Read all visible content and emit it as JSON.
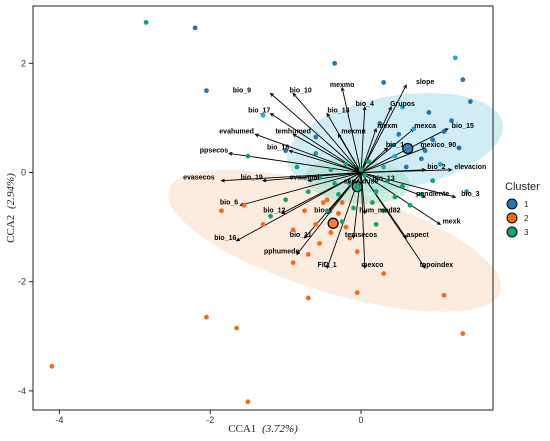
{
  "chart_data": {
    "type": "scatter",
    "subtype": "CCA ordination biplot with cluster ellipses",
    "xlabel": "CCA1 (3.72%)",
    "ylabel": "CCA2 (2.94%)",
    "xlabel_main": "CCA1",
    "xlabel_pct": "(3.72%)",
    "ylabel_main": "CCA2",
    "ylabel_pct": "(2.94%)",
    "xlim": [
      -4.35,
      1.75
    ],
    "ylim": [
      -4.35,
      3.05
    ],
    "x_ticks": [
      -4,
      -2,
      0
    ],
    "y_ticks": [
      -4,
      -2,
      0,
      2
    ],
    "grid": false,
    "legend": {
      "title": "Cluster",
      "placement": "right",
      "entries": [
        {
          "label": "1",
          "color": "#1f78b4"
        },
        {
          "label": "2",
          "color": "#f26b1d"
        },
        {
          "label": "3",
          "color": "#1aa170"
        }
      ]
    },
    "colors": {
      "cluster1": "#1f78b4",
      "cluster1_alt": "#2aa7c9",
      "cluster2": "#f26b1d",
      "cluster3": "#1aa170",
      "ellipse1": "#a9dcec",
      "ellipse2": "#f9dcc6",
      "ellipse3": "#a8e0c8"
    },
    "ellipses": [
      {
        "cluster": "1",
        "cx": 0.45,
        "cy": 0.55,
        "rx": 1.45,
        "ry": 0.85,
        "angle": -10
      },
      {
        "cluster": "2",
        "cx": -0.35,
        "cy": -1.25,
        "rx": 2.3,
        "ry": 0.95,
        "angle": 17
      },
      {
        "cluster": "3",
        "cx": -0.05,
        "cy": -0.15,
        "rx": 0.7,
        "ry": 0.42,
        "angle": 5
      }
    ],
    "centroids": [
      {
        "cluster": "1",
        "x": 0.62,
        "y": 0.44
      },
      {
        "cluster": "2",
        "x": -0.37,
        "y": -0.93
      },
      {
        "cluster": "3",
        "x": -0.05,
        "y": -0.26
      }
    ],
    "points": [
      {
        "x": -2.85,
        "y": 2.75,
        "c": "3"
      },
      {
        "x": -2.2,
        "y": 2.65,
        "c": "1"
      },
      {
        "x": -0.35,
        "y": 2.0,
        "c": "1"
      },
      {
        "x": 1.25,
        "y": 2.1,
        "c": "1"
      },
      {
        "x": 1.35,
        "y": 1.7,
        "c": "1"
      },
      {
        "x": 0.3,
        "y": 1.65,
        "c": "1"
      },
      {
        "x": 0.55,
        "y": 1.2,
        "c": "1"
      },
      {
        "x": 0.9,
        "y": 1.1,
        "c": "1"
      },
      {
        "x": 1.2,
        "y": 0.95,
        "c": "1"
      },
      {
        "x": 0.7,
        "y": 0.8,
        "c": "1"
      },
      {
        "x": 0.95,
        "y": 0.6,
        "c": "1"
      },
      {
        "x": 1.3,
        "y": 0.45,
        "c": "1"
      },
      {
        "x": 0.45,
        "y": 0.3,
        "c": "1"
      },
      {
        "x": 0.8,
        "y": 0.25,
        "c": "1"
      },
      {
        "x": 0.6,
        "y": 0.1,
        "c": "1"
      },
      {
        "x": 1.05,
        "y": 0.15,
        "c": "1"
      },
      {
        "x": 0.25,
        "y": 0.9,
        "c": "1"
      },
      {
        "x": 1.45,
        "y": 1.3,
        "c": "1"
      },
      {
        "x": 0.4,
        "y": 0.5,
        "c": "1"
      },
      {
        "x": 0.85,
        "y": 0.4,
        "c": "1"
      },
      {
        "x": 0.5,
        "y": 0.7,
        "c": "1"
      },
      {
        "x": 0.3,
        "y": 0.1,
        "c": "1"
      },
      {
        "x": 1.1,
        "y": 0.75,
        "c": "1"
      },
      {
        "x": -0.6,
        "y": 0.65,
        "c": "1"
      },
      {
        "x": -1.3,
        "y": 1.05,
        "c": "1"
      },
      {
        "x": -2.05,
        "y": 1.5,
        "c": "1"
      },
      {
        "x": -1.0,
        "y": 0.4,
        "c": "1"
      },
      {
        "x": 1.4,
        "y": -0.35,
        "c": "1"
      },
      {
        "x": -0.2,
        "y": 0.15,
        "c": "3"
      },
      {
        "x": -0.4,
        "y": 0.05,
        "c": "3"
      },
      {
        "x": 0.05,
        "y": -0.05,
        "c": "3"
      },
      {
        "x": -0.15,
        "y": -0.2,
        "c": "3"
      },
      {
        "x": 0.2,
        "y": -0.35,
        "c": "3"
      },
      {
        "x": -0.3,
        "y": -0.4,
        "c": "3"
      },
      {
        "x": 0.35,
        "y": -0.15,
        "c": "3"
      },
      {
        "x": -0.55,
        "y": -0.1,
        "c": "3"
      },
      {
        "x": 0.15,
        "y": -0.55,
        "c": "3"
      },
      {
        "x": -0.1,
        "y": -0.65,
        "c": "3"
      },
      {
        "x": 0.45,
        "y": -0.45,
        "c": "3"
      },
      {
        "x": -0.7,
        "y": -0.35,
        "c": "3"
      },
      {
        "x": 0.55,
        "y": -0.25,
        "c": "3"
      },
      {
        "x": -0.45,
        "y": -0.7,
        "c": "3"
      },
      {
        "x": 0.1,
        "y": 0.2,
        "c": "3"
      },
      {
        "x": -0.85,
        "y": 0.1,
        "c": "3"
      },
      {
        "x": 0.3,
        "y": -0.7,
        "c": "3"
      },
      {
        "x": -0.25,
        "y": -0.9,
        "c": "3"
      },
      {
        "x": 0.65,
        "y": -0.6,
        "c": "3"
      },
      {
        "x": -1.0,
        "y": -0.5,
        "c": "3"
      },
      {
        "x": 0.8,
        "y": -0.4,
        "c": "3"
      },
      {
        "x": -1.5,
        "y": 0.3,
        "c": "3"
      },
      {
        "x": -1.2,
        "y": -0.8,
        "c": "3"
      },
      {
        "x": 0.2,
        "y": -0.95,
        "c": "3"
      },
      {
        "x": 0.95,
        "y": -0.15,
        "c": "3"
      },
      {
        "x": -0.6,
        "y": 0.35,
        "c": "3"
      },
      {
        "x": 0.0,
        "y": 0.05,
        "c": "3"
      },
      {
        "x": -0.35,
        "y": -0.2,
        "c": "3"
      },
      {
        "x": -0.5,
        "y": -0.55,
        "c": "2"
      },
      {
        "x": -0.3,
        "y": -0.75,
        "c": "2"
      },
      {
        "x": -0.6,
        "y": -0.95,
        "c": "2"
      },
      {
        "x": -0.4,
        "y": -1.1,
        "c": "2"
      },
      {
        "x": -0.2,
        "y": -1.0,
        "c": "2"
      },
      {
        "x": -0.75,
        "y": -0.7,
        "c": "2"
      },
      {
        "x": -0.15,
        "y": -1.2,
        "c": "2"
      },
      {
        "x": -0.55,
        "y": -1.3,
        "c": "2"
      },
      {
        "x": -0.9,
        "y": -1.05,
        "c": "2"
      },
      {
        "x": -1.3,
        "y": -0.95,
        "c": "2"
      },
      {
        "x": -0.05,
        "y": -1.45,
        "c": "2"
      },
      {
        "x": -0.7,
        "y": -1.5,
        "c": "2"
      },
      {
        "x": -1.55,
        "y": -0.6,
        "c": "2"
      },
      {
        "x": -1.85,
        "y": -0.7,
        "c": "2"
      },
      {
        "x": -0.9,
        "y": -1.65,
        "c": "2"
      },
      {
        "x": -0.7,
        "y": -2.3,
        "c": "2"
      },
      {
        "x": -0.05,
        "y": -2.2,
        "c": "2"
      },
      {
        "x": 0.3,
        "y": -1.85,
        "c": "2"
      },
      {
        "x": -2.05,
        "y": -2.65,
        "c": "2"
      },
      {
        "x": -1.65,
        "y": -2.85,
        "c": "2"
      },
      {
        "x": -4.1,
        "y": -3.55,
        "c": "2"
      },
      {
        "x": -1.5,
        "y": -4.2,
        "c": "2"
      },
      {
        "x": 1.35,
        "y": -2.95,
        "c": "2"
      },
      {
        "x": 1.1,
        "y": -2.25,
        "c": "2"
      },
      {
        "x": -0.45,
        "y": -0.5,
        "c": "2"
      },
      {
        "x": -0.25,
        "y": -0.55,
        "c": "2"
      }
    ],
    "arrows": [
      {
        "label": "bio_9",
        "x": -1.2,
        "y": 1.45,
        "lx": -1.58,
        "ly": 1.45
      },
      {
        "label": "bio_10",
        "x": -0.9,
        "y": 1.45,
        "lx": -0.8,
        "ly": 1.45
      },
      {
        "label": "mexmo",
        "x": -0.25,
        "y": 1.55,
        "lx": -0.25,
        "ly": 1.55
      },
      {
        "label": "slope",
        "x": 0.6,
        "y": 1.6,
        "lx": 0.85,
        "ly": 1.6
      },
      {
        "label": "bio_17",
        "x": -1.2,
        "y": 1.08,
        "lx": -1.35,
        "ly": 1.08
      },
      {
        "label": "bio_14",
        "x": -0.45,
        "y": 1.08,
        "lx": -0.3,
        "ly": 1.08
      },
      {
        "label": "bio_4",
        "x": 0.05,
        "y": 1.2,
        "lx": 0.05,
        "ly": 1.2
      },
      {
        "label": "Grupos",
        "x": 0.4,
        "y": 1.2,
        "lx": 0.55,
        "ly": 1.2
      },
      {
        "label": "mexm",
        "x": 0.2,
        "y": 0.8,
        "lx": 0.35,
        "ly": 0.8
      },
      {
        "label": "mexca",
        "x": 0.7,
        "y": 0.8,
        "lx": 0.85,
        "ly": 0.8
      },
      {
        "label": "bio_15",
        "x": 1.15,
        "y": 0.8,
        "lx": 1.35,
        "ly": 0.8
      },
      {
        "label": "evahumed",
        "x": -1.4,
        "y": 0.7,
        "lx": -1.65,
        "ly": 0.7
      },
      {
        "label": "temhumed",
        "x": -0.9,
        "y": 0.7,
        "lx": -0.9,
        "ly": 0.7
      },
      {
        "label": "mexmn",
        "x": -0.3,
        "y": 0.7,
        "lx": -0.1,
        "ly": 0.7
      },
      {
        "label": "bio_18",
        "x": -0.95,
        "y": 0.4,
        "lx": -1.1,
        "ly": 0.4
      },
      {
        "label": "bio_1",
        "x": 0.35,
        "y": 0.45,
        "lx": 0.45,
        "ly": 0.45
      },
      {
        "label": "mexico_90_",
        "x": 0.85,
        "y": 0.45,
        "lx": 1.05,
        "ly": 0.45
      },
      {
        "label": "ppsecos",
        "x": -1.75,
        "y": 0.35,
        "lx": -1.95,
        "ly": 0.35
      },
      {
        "label": "elevacion",
        "x": 1.2,
        "y": 0.05,
        "lx": 1.45,
        "ly": 0.05
      },
      {
        "label": "bio_2",
        "x": 0.85,
        "y": 0.05,
        "lx": 1.0,
        "ly": 0.05
      },
      {
        "label": "bio_19",
        "x": -1.3,
        "y": -0.15,
        "lx": -1.45,
        "ly": -0.15
      },
      {
        "label": "evasecos",
        "x": -1.85,
        "y": -0.15,
        "lx": -2.15,
        "ly": -0.15
      },
      {
        "label": "evaanual",
        "x": -0.7,
        "y": -0.15,
        "lx": -0.75,
        "ly": -0.15
      },
      {
        "label": "pendiente",
        "x": 0.85,
        "y": -0.45,
        "lx": 0.95,
        "ly": -0.45
      },
      {
        "label": "bio_3",
        "x": 1.25,
        "y": -0.45,
        "lx": 1.45,
        "ly": -0.45
      },
      {
        "label": "bio_6",
        "x": -1.6,
        "y": -0.6,
        "lx": -1.75,
        "ly": -0.6
      },
      {
        "label": "bio_12",
        "x": -1.05,
        "y": -0.75,
        "lx": -1.15,
        "ly": -0.75
      },
      {
        "label": "bio_1",
        "x": -0.45,
        "y": -0.75,
        "lx": -0.5,
        "ly": -0.75
      },
      {
        "label": "hum_mod82",
        "x": 0.05,
        "y": -0.75,
        "lx": 0.25,
        "ly": -0.75
      },
      {
        "label": "mexk",
        "x": 1.05,
        "y": -0.95,
        "lx": 1.2,
        "ly": -0.95
      },
      {
        "label": "bio_16",
        "x": -1.65,
        "y": -1.25,
        "lx": -1.8,
        "ly": -1.25
      },
      {
        "label": "bio_11",
        "x": -0.75,
        "y": -1.2,
        "lx": -0.8,
        "ly": -1.2
      },
      {
        "label": "temsecos",
        "x": -0.1,
        "y": -1.2,
        "lx": 0.0,
        "ly": -1.2
      },
      {
        "label": "aspect",
        "x": 0.6,
        "y": -1.2,
        "lx": 0.75,
        "ly": -1.2
      },
      {
        "label": "pphumedo",
        "x": -0.85,
        "y": -1.5,
        "lx": -1.05,
        "ly": -1.5
      },
      {
        "label": "FID_1",
        "x": -0.45,
        "y": -1.75,
        "lx": -0.45,
        "ly": -1.75
      },
      {
        "label": "mexco",
        "x": 0.05,
        "y": -1.75,
        "lx": 0.15,
        "ly": -1.75
      },
      {
        "label": "topoindex",
        "x": 0.85,
        "y": -1.75,
        "lx": 1.0,
        "ly": -1.75
      }
    ],
    "overlap_labels": [
      {
        "label": "serv_duse",
        "x": 0.0,
        "y": -0.2
      },
      {
        "label": "bio_13",
        "x": 0.3,
        "y": -0.15
      }
    ]
  }
}
